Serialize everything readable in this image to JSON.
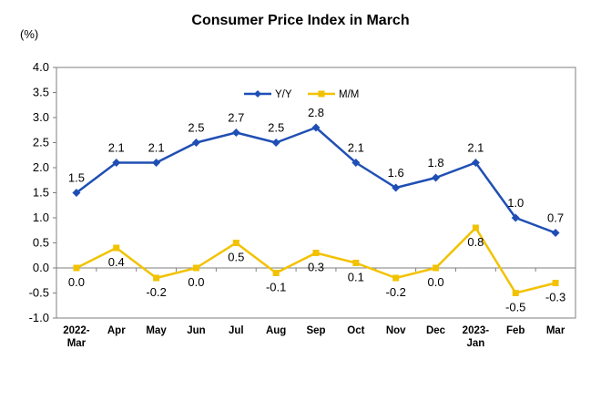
{
  "chart_data": {
    "type": "line",
    "title": "Consumer Price Index in March",
    "ylabel": "(%)",
    "xlabel": "",
    "categories": [
      "2022-Mar",
      "Apr",
      "May",
      "Jun",
      "Jul",
      "Aug",
      "Sep",
      "Oct",
      "Nov",
      "Dec",
      "2023-Jan",
      "Feb",
      "Mar"
    ],
    "ylim": [
      -1.0,
      4.0
    ],
    "yticks": [
      "4.0",
      "3.5",
      "3.0",
      "2.5",
      "2.0",
      "1.5",
      "1.0",
      "0.5",
      "0.0",
      "-0.5",
      "-1.0"
    ],
    "series": [
      {
        "name": "Y/Y",
        "color": "#1f4fb4",
        "marker": "diamond",
        "values": [
          1.5,
          2.1,
          2.1,
          2.5,
          2.7,
          2.5,
          2.8,
          2.1,
          1.6,
          1.8,
          2.1,
          1.0,
          0.7
        ],
        "labels": [
          "1.5",
          "2.1",
          "2.1",
          "2.5",
          "2.7",
          "2.5",
          "2.8",
          "2.1",
          "1.6",
          "1.8",
          "2.1",
          "1.0",
          "0.7"
        ]
      },
      {
        "name": "M/M",
        "color": "#f2c200",
        "marker": "square",
        "values": [
          0.0,
          0.4,
          -0.2,
          0.0,
          0.5,
          -0.1,
          0.3,
          0.1,
          -0.2,
          0.0,
          0.8,
          -0.5,
          -0.3
        ],
        "labels": [
          "0.0",
          "0.4",
          "-0.2",
          "0.0",
          "0.5",
          "-0.1",
          "0.3",
          "0.1",
          "-0.2",
          "0.0",
          "0.8",
          "-0.5",
          "-0.3"
        ]
      }
    ],
    "grid": false,
    "legend": "top-center"
  }
}
